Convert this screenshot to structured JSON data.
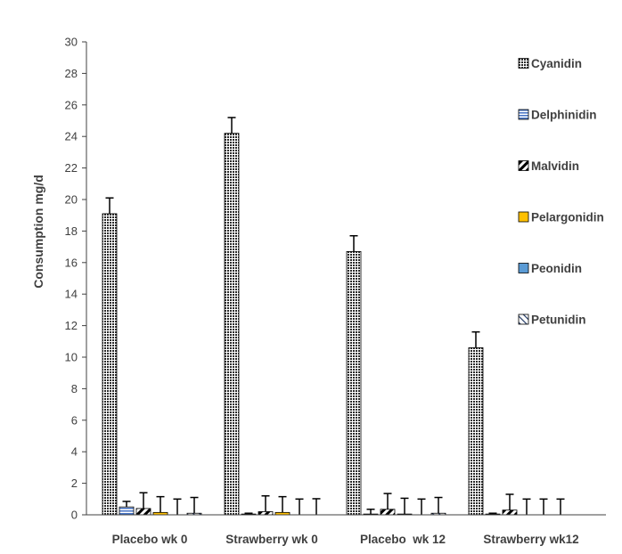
{
  "chart_data": {
    "type": "bar",
    "title": "",
    "xlabel": "",
    "ylabel": "Consumption mg/d",
    "ylim": [
      0,
      30
    ],
    "ytick_step": 2,
    "grid": false,
    "legend_position": "right",
    "categories": [
      "Placebo wk 0",
      "Strawberry wk 0",
      "Placebo  wk 12",
      "Strawberry wk12"
    ],
    "series": [
      {
        "name": "Cyanidin",
        "values": [
          19.1,
          24.2,
          16.7,
          10.6
        ],
        "errors": [
          1.0,
          1.0,
          1.0,
          1.0
        ],
        "fill": "dots",
        "color": "#2b2b2b"
      },
      {
        "name": "Delphinidin",
        "values": [
          0.5,
          0.05,
          0.05,
          0.05
        ],
        "errors": [
          0.35,
          0.05,
          0.3,
          0.05
        ],
        "fill": "hlines",
        "color": "#4472c4"
      },
      {
        "name": "Malvidin",
        "values": [
          0.4,
          0.2,
          0.35,
          0.3
        ],
        "errors": [
          1.0,
          1.0,
          1.0,
          1.0
        ],
        "fill": "dstripes",
        "color": "#000000"
      },
      {
        "name": "Pelargonidin",
        "values": [
          0.15,
          0.15,
          0.05,
          0.0
        ],
        "errors": [
          1.0,
          1.0,
          1.0,
          1.0
        ],
        "fill": "solid",
        "color": "#ffc000"
      },
      {
        "name": "Peonidin",
        "values": [
          0.0,
          0.0,
          0.0,
          0.0
        ],
        "errors": [
          1.0,
          1.0,
          1.0,
          1.0
        ],
        "fill": "solid",
        "color": "#5b9bd5"
      },
      {
        "name": "Petunidin",
        "values": [
          0.1,
          0.02,
          0.1,
          0.0
        ],
        "errors": [
          1.0,
          1.0,
          1.0,
          1.0
        ],
        "fill": "dstripes2",
        "color": "#203864"
      }
    ]
  }
}
